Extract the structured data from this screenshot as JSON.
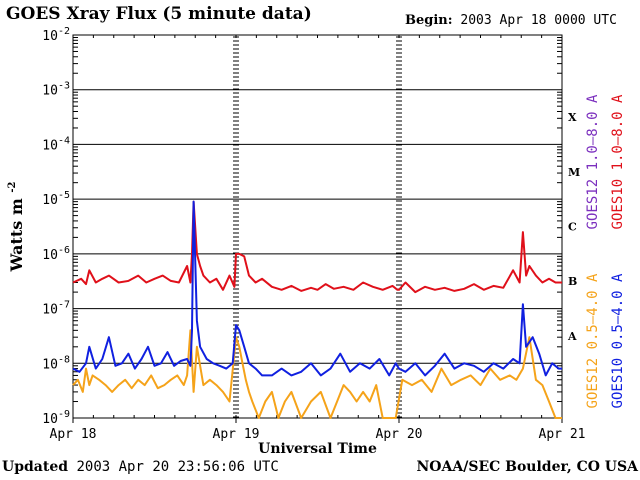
{
  "chart_data": {
    "type": "line",
    "title": "GOES Xray Flux (5 minute data)",
    "begin": {
      "label": "Begin:",
      "value": "2003 Apr 18 0000 UTC"
    },
    "xlabel": "Universal Time",
    "ylabel": "Watts m",
    "ylabel_exponent": "-2",
    "y_scale": "log",
    "ylim": [
      1e-09,
      0.01
    ],
    "xlim_days": [
      0,
      3
    ],
    "x_ticks": [
      {
        "day": 0,
        "label": "Apr 18"
      },
      {
        "day": 1,
        "label": "Apr 19"
      },
      {
        "day": 2,
        "label": "Apr 20"
      },
      {
        "day": 3,
        "label": "Apr 21"
      }
    ],
    "y_ticks": [
      {
        "exp": -2,
        "base": "10",
        "sup": "-2"
      },
      {
        "exp": -3,
        "base": "10",
        "sup": "-3"
      },
      {
        "exp": -4,
        "base": "10",
        "sup": "-4"
      },
      {
        "exp": -5,
        "base": "10",
        "sup": "-5"
      },
      {
        "exp": -6,
        "base": "10",
        "sup": "-6"
      },
      {
        "exp": -7,
        "base": "10",
        "sup": "-7"
      },
      {
        "exp": -8,
        "base": "10",
        "sup": "-8"
      },
      {
        "exp": -9,
        "base": "10",
        "sup": "-9"
      }
    ],
    "flare_classes": [
      {
        "label": "X",
        "exp": -3.5
      },
      {
        "label": "M",
        "exp": -4.5
      },
      {
        "label": "C",
        "exp": -5.5
      },
      {
        "label": "B",
        "exp": -6.5
      },
      {
        "label": "A",
        "exp": -7.5
      }
    ],
    "grid": true,
    "legend": [
      {
        "name": "GOES12 1.0–8.0 A",
        "color": "#7b2fbe"
      },
      {
        "name": "GOES10 1.0–8.0 A",
        "color": "#e0101a"
      },
      {
        "name": "GOES12 0.5–4.0 A",
        "color": "#f5a31a"
      },
      {
        "name": "GOES10 0.5–4.0 A",
        "color": "#1020e0"
      }
    ],
    "series": [
      {
        "name": "GOES10 1.0–8.0 A",
        "color": "#e0101a",
        "x": [
          0,
          0.05,
          0.08,
          0.1,
          0.14,
          0.18,
          0.22,
          0.28,
          0.34,
          0.4,
          0.45,
          0.5,
          0.55,
          0.6,
          0.65,
          0.7,
          0.72,
          0.73,
          0.74,
          0.76,
          0.78,
          0.8,
          0.84,
          0.88,
          0.92,
          0.96,
          0.99,
          1.0,
          1.02,
          1.05,
          1.08,
          1.12,
          1.16,
          1.22,
          1.28,
          1.34,
          1.4,
          1.46,
          1.5,
          1.55,
          1.6,
          1.66,
          1.72,
          1.78,
          1.84,
          1.9,
          1.96,
          1.99,
          2.0,
          2.04,
          2.1,
          2.16,
          2.22,
          2.28,
          2.34,
          2.4,
          2.46,
          2.52,
          2.58,
          2.64,
          2.7,
          2.74,
          2.76,
          2.78,
          2.8,
          2.84,
          2.88,
          2.92,
          2.96,
          3.0
        ],
        "values": [
          3e-07,
          3.5e-07,
          2.8e-07,
          5e-07,
          3e-07,
          3.5e-07,
          4e-07,
          3e-07,
          3.2e-07,
          4e-07,
          3e-07,
          3.5e-07,
          4e-07,
          3.2e-07,
          3e-07,
          6e-07,
          3e-07,
          1e-06,
          9e-06,
          1e-06,
          6e-07,
          4e-07,
          3e-07,
          3.5e-07,
          2.2e-07,
          4e-07,
          2.5e-07,
          1e-06,
          1e-06,
          9e-07,
          4e-07,
          3e-07,
          3.5e-07,
          2.5e-07,
          2.2e-07,
          2.6e-07,
          2.1e-07,
          2.4e-07,
          2.2e-07,
          2.8e-07,
          2.3e-07,
          2.5e-07,
          2.2e-07,
          3e-07,
          2.5e-07,
          2.2e-07,
          2.6e-07,
          2.2e-07,
          2.2e-07,
          3e-07,
          2e-07,
          2.5e-07,
          2.2e-07,
          2.4e-07,
          2.1e-07,
          2.3e-07,
          2.8e-07,
          2.2e-07,
          2.6e-07,
          2.4e-07,
          5e-07,
          3e-07,
          2.5e-06,
          4e-07,
          6e-07,
          4e-07,
          3e-07,
          3.5e-07,
          3e-07,
          3e-07
        ]
      },
      {
        "name": "GOES10 0.5–4.0 A",
        "color": "#1020e0",
        "x": [
          0,
          0.04,
          0.08,
          0.1,
          0.14,
          0.18,
          0.22,
          0.26,
          0.3,
          0.34,
          0.38,
          0.42,
          0.46,
          0.5,
          0.54,
          0.58,
          0.62,
          0.66,
          0.7,
          0.72,
          0.73,
          0.74,
          0.76,
          0.78,
          0.82,
          0.86,
          0.9,
          0.94,
          0.98,
          1.0,
          1.02,
          1.05,
          1.08,
          1.12,
          1.16,
          1.22,
          1.28,
          1.34,
          1.4,
          1.46,
          1.52,
          1.58,
          1.64,
          1.7,
          1.76,
          1.82,
          1.88,
          1.94,
          1.98,
          2.0,
          2.04,
          2.1,
          2.16,
          2.22,
          2.28,
          2.34,
          2.4,
          2.46,
          2.52,
          2.58,
          2.64,
          2.7,
          2.74,
          2.76,
          2.78,
          2.82,
          2.86,
          2.9,
          2.94,
          2.98,
          3.0
        ],
        "values": [
          8e-09,
          7e-09,
          1e-08,
          2e-08,
          8e-09,
          1.2e-08,
          3e-08,
          9e-09,
          1e-08,
          1.5e-08,
          8e-09,
          1.2e-08,
          2e-08,
          9e-09,
          1e-08,
          1.6e-08,
          9e-09,
          1.1e-08,
          1.2e-08,
          9e-09,
          4e-08,
          9e-06,
          6e-08,
          2e-08,
          1.2e-08,
          1e-08,
          9e-09,
          8e-09,
          1e-08,
          5e-08,
          4e-08,
          2e-08,
          1e-08,
          8e-09,
          6e-09,
          6e-09,
          8e-09,
          6e-09,
          7e-09,
          1e-08,
          6e-09,
          8e-09,
          1.5e-08,
          7e-09,
          1e-08,
          8e-09,
          1.2e-08,
          6e-09,
          1e-08,
          8e-09,
          7e-09,
          1e-08,
          6e-09,
          9e-09,
          1.5e-08,
          8e-09,
          1e-08,
          9e-09,
          7e-09,
          1e-08,
          8e-09,
          1.2e-08,
          1e-08,
          1.2e-07,
          2e-08,
          3e-08,
          1.5e-08,
          6e-09,
          1e-08,
          8e-09,
          8e-09
        ]
      },
      {
        "name": "GOES12 0.5–4.0 A",
        "color": "#f5a31a",
        "x": [
          0,
          0.03,
          0.06,
          0.08,
          0.1,
          0.12,
          0.16,
          0.2,
          0.24,
          0.28,
          0.32,
          0.36,
          0.4,
          0.44,
          0.48,
          0.52,
          0.56,
          0.6,
          0.64,
          0.68,
          0.7,
          0.72,
          0.74,
          0.76,
          0.8,
          0.84,
          0.88,
          0.92,
          0.96,
          1.0,
          1.02,
          1.04,
          1.06,
          1.08,
          1.1,
          1.14,
          1.18,
          1.22,
          1.26,
          1.3,
          1.34,
          1.4,
          1.46,
          1.52,
          1.58,
          1.62,
          1.66,
          1.7,
          1.74,
          1.78,
          1.82,
          1.86,
          1.9,
          1.94,
          1.98,
          2.02,
          2.08,
          2.14,
          2.2,
          2.26,
          2.32,
          2.38,
          2.44,
          2.5,
          2.56,
          2.62,
          2.68,
          2.72,
          2.76,
          2.8,
          2.84,
          2.88,
          2.92,
          2.96,
          3.0
        ],
        "values": [
          4e-09,
          5e-09,
          3e-09,
          8e-09,
          4e-09,
          6e-09,
          5e-09,
          4e-09,
          3e-09,
          4e-09,
          5e-09,
          3.5e-09,
          5e-09,
          4e-09,
          6e-09,
          3.5e-09,
          4e-09,
          5e-09,
          6e-09,
          4e-09,
          6e-09,
          4e-08,
          3e-09,
          2e-08,
          4e-09,
          5e-09,
          4e-09,
          3e-09,
          2e-09,
          3e-08,
          2e-08,
          1e-08,
          5e-09,
          3e-09,
          2e-09,
          1e-09,
          2e-09,
          3e-09,
          1e-09,
          2e-09,
          3e-09,
          1e-09,
          2e-09,
          3e-09,
          1e-09,
          2e-09,
          4e-09,
          3e-09,
          2e-09,
          3e-09,
          2e-09,
          4e-09,
          1e-09,
          1e-09,
          1e-09,
          5e-09,
          4e-09,
          5e-09,
          3e-09,
          8e-09,
          4e-09,
          5e-09,
          6e-09,
          4e-09,
          8e-09,
          5e-09,
          6e-09,
          5e-09,
          8e-09,
          3e-08,
          5e-09,
          4e-09,
          2e-09,
          1e-09,
          1e-09
        ]
      }
    ]
  },
  "footer": {
    "updated_label": "Updated",
    "updated_value": "2003 Apr 20 23:56:06 UTC",
    "credit": "NOAA/SEC Boulder, CO USA"
  }
}
